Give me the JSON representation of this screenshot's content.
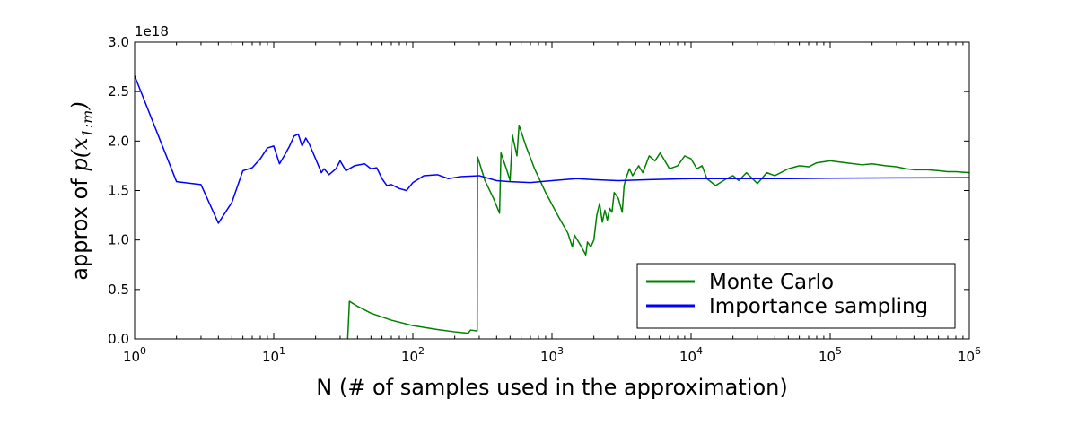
{
  "chart_data": {
    "type": "line",
    "title": "",
    "xlabel": "N  (# of samples used in the approximation)",
    "ylabel_prefix": "approx of ",
    "ylabel_math": "p(x",
    "ylabel_math_sub": "1:m",
    "ylabel_math_close": ")",
    "y_multiplier": "1e18",
    "x_scale": "log",
    "xlim": [
      1,
      1000000
    ],
    "ylim": [
      0.0,
      3.0
    ],
    "grid": false,
    "legend_position": "lower-right",
    "x_ticks": [
      {
        "value": 1,
        "base": "10",
        "exp": "0"
      },
      {
        "value": 10,
        "base": "10",
        "exp": "1"
      },
      {
        "value": 100,
        "base": "10",
        "exp": "2"
      },
      {
        "value": 1000,
        "base": "10",
        "exp": "3"
      },
      {
        "value": 10000,
        "base": "10",
        "exp": "4"
      },
      {
        "value": 100000,
        "base": "10",
        "exp": "5"
      },
      {
        "value": 1000000,
        "base": "10",
        "exp": "6"
      }
    ],
    "y_ticks": [
      {
        "value": 0.0,
        "label": "0.0"
      },
      {
        "value": 0.5,
        "label": "0.5"
      },
      {
        "value": 1.0,
        "label": "1.0"
      },
      {
        "value": 1.5,
        "label": "1.5"
      },
      {
        "value": 2.0,
        "label": "2.0"
      },
      {
        "value": 2.5,
        "label": "2.5"
      },
      {
        "value": 3.0,
        "label": "3.0"
      }
    ],
    "series": [
      {
        "name": "Monte Carlo",
        "color": "#008000",
        "points": [
          [
            34,
            0.0
          ],
          [
            35,
            0.38
          ],
          [
            40,
            0.33
          ],
          [
            50,
            0.26
          ],
          [
            70,
            0.19
          ],
          [
            100,
            0.135
          ],
          [
            150,
            0.095
          ],
          [
            200,
            0.072
          ],
          [
            250,
            0.058
          ],
          [
            260,
            0.09
          ],
          [
            290,
            0.08
          ],
          [
            292,
            1.84
          ],
          [
            330,
            1.6
          ],
          [
            380,
            1.42
          ],
          [
            420,
            1.27
          ],
          [
            430,
            1.88
          ],
          [
            470,
            1.72
          ],
          [
            500,
            1.6
          ],
          [
            520,
            2.06
          ],
          [
            560,
            1.85
          ],
          [
            580,
            2.16
          ],
          [
            650,
            1.95
          ],
          [
            750,
            1.72
          ],
          [
            900,
            1.48
          ],
          [
            1100,
            1.25
          ],
          [
            1300,
            1.07
          ],
          [
            1400,
            0.93
          ],
          [
            1450,
            1.05
          ],
          [
            1600,
            0.95
          ],
          [
            1750,
            0.85
          ],
          [
            1800,
            0.98
          ],
          [
            1900,
            0.93
          ],
          [
            2000,
            1.0
          ],
          [
            2100,
            1.25
          ],
          [
            2200,
            1.37
          ],
          [
            2300,
            1.18
          ],
          [
            2400,
            1.3
          ],
          [
            2500,
            1.2
          ],
          [
            2600,
            1.32
          ],
          [
            2700,
            1.28
          ],
          [
            2800,
            1.48
          ],
          [
            3000,
            1.42
          ],
          [
            3200,
            1.28
          ],
          [
            3300,
            1.55
          ],
          [
            3400,
            1.62
          ],
          [
            3600,
            1.72
          ],
          [
            3800,
            1.65
          ],
          [
            4200,
            1.75
          ],
          [
            4500,
            1.68
          ],
          [
            5000,
            1.85
          ],
          [
            5500,
            1.8
          ],
          [
            6000,
            1.88
          ],
          [
            7000,
            1.72
          ],
          [
            8000,
            1.75
          ],
          [
            9000,
            1.85
          ],
          [
            10000,
            1.82
          ],
          [
            11000,
            1.72
          ],
          [
            12000,
            1.75
          ],
          [
            13000,
            1.62
          ],
          [
            15000,
            1.55
          ],
          [
            18000,
            1.62
          ],
          [
            20000,
            1.65
          ],
          [
            22000,
            1.6
          ],
          [
            25000,
            1.68
          ],
          [
            30000,
            1.57
          ],
          [
            35000,
            1.68
          ],
          [
            40000,
            1.65
          ],
          [
            50000,
            1.72
          ],
          [
            60000,
            1.75
          ],
          [
            70000,
            1.74
          ],
          [
            80000,
            1.78
          ],
          [
            100000,
            1.8
          ],
          [
            130000,
            1.78
          ],
          [
            170000,
            1.76
          ],
          [
            200000,
            1.77
          ],
          [
            250000,
            1.75
          ],
          [
            300000,
            1.74
          ],
          [
            350000,
            1.72
          ],
          [
            400000,
            1.71
          ],
          [
            500000,
            1.71
          ],
          [
            600000,
            1.7
          ],
          [
            700000,
            1.69
          ],
          [
            800000,
            1.69
          ],
          [
            1000000,
            1.68
          ]
        ]
      },
      {
        "name": "Importance sampling",
        "color": "#0000ff",
        "points": [
          [
            1,
            2.66
          ],
          [
            2,
            1.59
          ],
          [
            3,
            1.56
          ],
          [
            4,
            1.17
          ],
          [
            5,
            1.38
          ],
          [
            6,
            1.7
          ],
          [
            7,
            1.73
          ],
          [
            8,
            1.82
          ],
          [
            9,
            1.93
          ],
          [
            10,
            1.95
          ],
          [
            11,
            1.77
          ],
          [
            12,
            1.86
          ],
          [
            13,
            1.95
          ],
          [
            14,
            2.05
          ],
          [
            15,
            2.07
          ],
          [
            16,
            1.95
          ],
          [
            17,
            2.03
          ],
          [
            18,
            1.97
          ],
          [
            20,
            1.82
          ],
          [
            22,
            1.68
          ],
          [
            23,
            1.72
          ],
          [
            25,
            1.66
          ],
          [
            28,
            1.72
          ],
          [
            30,
            1.8
          ],
          [
            33,
            1.7
          ],
          [
            38,
            1.75
          ],
          [
            45,
            1.77
          ],
          [
            50,
            1.72
          ],
          [
            55,
            1.73
          ],
          [
            60,
            1.62
          ],
          [
            65,
            1.55
          ],
          [
            70,
            1.56
          ],
          [
            80,
            1.52
          ],
          [
            90,
            1.5
          ],
          [
            100,
            1.58
          ],
          [
            120,
            1.65
          ],
          [
            150,
            1.66
          ],
          [
            180,
            1.62
          ],
          [
            220,
            1.64
          ],
          [
            300,
            1.65
          ],
          [
            400,
            1.6
          ],
          [
            500,
            1.59
          ],
          [
            700,
            1.58
          ],
          [
            1000,
            1.6
          ],
          [
            1500,
            1.62
          ],
          [
            2000,
            1.61
          ],
          [
            3000,
            1.6
          ],
          [
            5000,
            1.61
          ],
          [
            10000,
            1.62
          ],
          [
            20000,
            1.62
          ],
          [
            50000,
            1.62
          ],
          [
            100000,
            1.625
          ],
          [
            300000,
            1.628
          ],
          [
            1000000,
            1.63
          ]
        ]
      }
    ]
  }
}
